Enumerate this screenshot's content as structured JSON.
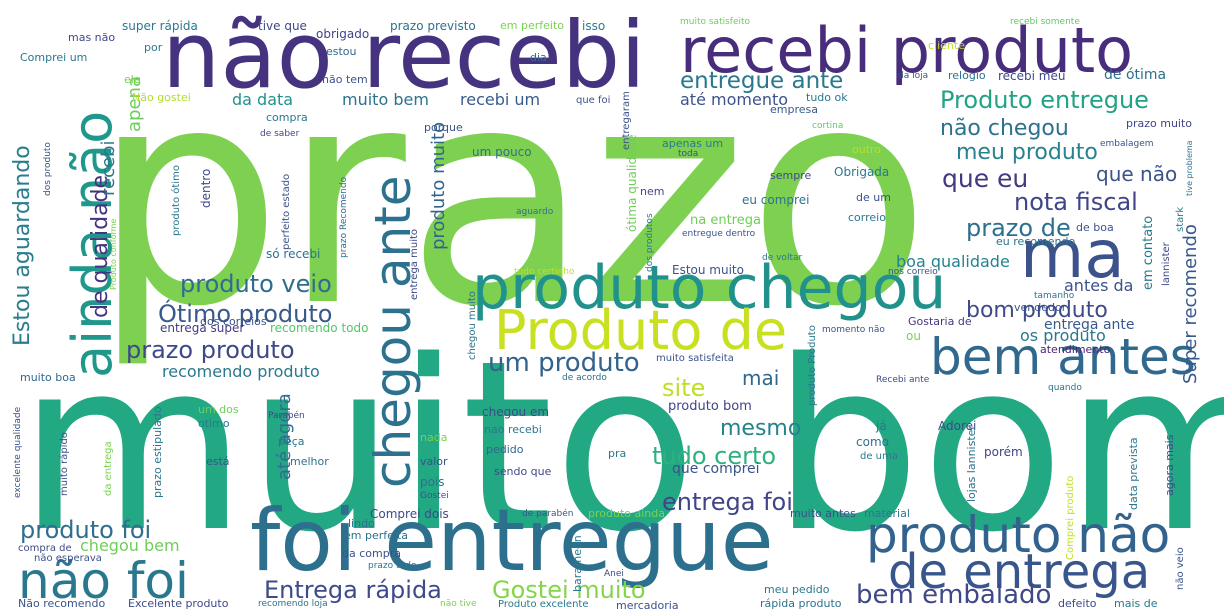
{
  "words": [
    {
      "text": "prazo"
    },
    {
      "text": "muito bom"
    },
    {
      "text": "não recebi"
    },
    {
      "text": "recebi produto"
    },
    {
      "text": "foi entregue"
    },
    {
      "text": "produto chegou"
    },
    {
      "text": "ainda não"
    },
    {
      "text": "chegou ante"
    },
    {
      "text": "Produto de"
    },
    {
      "text": "bem antes"
    },
    {
      "text": "ma"
    },
    {
      "text": "produto não"
    },
    {
      "text": "de entrega"
    },
    {
      "text": "não foi"
    },
    {
      "text": "Entrega rápida"
    },
    {
      "text": "Gostei muito"
    },
    {
      "text": "bem embalado"
    },
    {
      "text": "entregue ante"
    },
    {
      "text": "Produto entregue"
    },
    {
      "text": "não chegou"
    },
    {
      "text": "meu produto"
    },
    {
      "text": "que eu"
    },
    {
      "text": "que não"
    },
    {
      "text": "nota fiscal"
    },
    {
      "text": "prazo de"
    },
    {
      "text": "Estou aguardando"
    },
    {
      "text": "de qualidade"
    },
    {
      "text": "produto veio"
    },
    {
      "text": "Ótimo produto"
    },
    {
      "text": "prazo produto"
    },
    {
      "text": "um produto"
    },
    {
      "text": "site"
    },
    {
      "text": "mai"
    },
    {
      "text": "mesmo"
    },
    {
      "text": "tudo certo"
    },
    {
      "text": "entrega foi"
    },
    {
      "text": "produto foi"
    },
    {
      "text": "chegou bem"
    },
    {
      "text": "bom produto"
    },
    {
      "text": "Super recomendo"
    },
    {
      "text": "recebi"
    },
    {
      "text": "apena"
    },
    {
      "text": "produto muito"
    },
    {
      "text": "até agora"
    },
    {
      "text": "muito bem"
    },
    {
      "text": "recebi um"
    },
    {
      "text": "até momento"
    },
    {
      "text": "da data"
    },
    {
      "text": "recomendo produto"
    },
    {
      "text": "dos correios"
    },
    {
      "text": "entrega super"
    },
    {
      "text": "recomendo todo"
    },
    {
      "text": "boa qualidade"
    },
    {
      "text": "antes da"
    },
    {
      "text": "os produto"
    },
    {
      "text": "entrega ante"
    },
    {
      "text": "em contato"
    },
    {
      "text": "vendedor"
    },
    {
      "text": "Gostaria de"
    },
    {
      "text": "atendimento"
    },
    {
      "text": "super rápida"
    },
    {
      "text": "tive que"
    },
    {
      "text": "obrigado"
    },
    {
      "text": "prazo previsto"
    },
    {
      "text": "em perfeito"
    },
    {
      "text": "isso"
    },
    {
      "text": "muito satisfeito"
    },
    {
      "text": "recebi somente"
    },
    {
      "text": "mas não"
    },
    {
      "text": "Comprei um"
    },
    {
      "text": "estou"
    },
    {
      "text": "por"
    },
    {
      "text": "ele"
    },
    {
      "text": "não tem"
    },
    {
      "text": "dia"
    },
    {
      "text": "Não gostei"
    },
    {
      "text": "que foi"
    },
    {
      "text": "tudo ok"
    },
    {
      "text": "empresa"
    },
    {
      "text": "relógio"
    },
    {
      "text": "recebi meu"
    },
    {
      "text": "de ótima"
    },
    {
      "text": "cliente"
    },
    {
      "text": "da loja"
    },
    {
      "text": "compra"
    },
    {
      "text": "porque"
    },
    {
      "text": "cortina"
    },
    {
      "text": "de saber"
    },
    {
      "text": "prazo muito"
    },
    {
      "text": "embalagem"
    },
    {
      "text": "um pouco"
    },
    {
      "text": "apenas um"
    },
    {
      "text": "toda"
    },
    {
      "text": "outro"
    },
    {
      "text": "Obrigada"
    },
    {
      "text": "sempre"
    },
    {
      "text": "eu comprei"
    },
    {
      "text": "de um"
    },
    {
      "text": "correio"
    },
    {
      "text": "aguardo"
    },
    {
      "text": "entregue dentro"
    },
    {
      "text": "na entrega"
    },
    {
      "text": "de boa"
    },
    {
      "text": "eu recomendo"
    },
    {
      "text": "dentro"
    },
    {
      "text": "produto ótimo"
    },
    {
      "text": "perfeito estado"
    },
    {
      "text": "só recebi"
    },
    {
      "text": "prazo Recomendo"
    },
    {
      "text": "nem"
    },
    {
      "text": "Estou muito"
    },
    {
      "text": "de voltar"
    },
    {
      "text": "tudo certinho"
    },
    {
      "text": "nos correio"
    },
    {
      "text": "tamanho"
    },
    {
      "text": "lannister"
    },
    {
      "text": "stark"
    },
    {
      "text": "momento não"
    },
    {
      "text": "ou"
    },
    {
      "text": "muito satisfeita"
    },
    {
      "text": "de acordo"
    },
    {
      "text": "Recebi ante"
    },
    {
      "text": "quando"
    },
    {
      "text": "muito boa"
    },
    {
      "text": "excelente qualidade"
    },
    {
      "text": "um dos"
    },
    {
      "text": "otimo"
    },
    {
      "text": "Parabén"
    },
    {
      "text": "peça"
    },
    {
      "text": "está"
    },
    {
      "text": "melhor"
    },
    {
      "text": "nada"
    },
    {
      "text": "chegou em"
    },
    {
      "text": "nao recebi"
    },
    {
      "text": "pedido"
    },
    {
      "text": "valor"
    },
    {
      "text": "produto bom"
    },
    {
      "text": "já"
    },
    {
      "text": "como"
    },
    {
      "text": "Adorei"
    },
    {
      "text": "porém"
    },
    {
      "text": "de uma"
    },
    {
      "text": "que comprei"
    },
    {
      "text": "pois"
    },
    {
      "text": "sendo que"
    },
    {
      "text": "pra"
    },
    {
      "text": "Gostei"
    },
    {
      "text": "lojas lannister"
    },
    {
      "text": "data prevista"
    },
    {
      "text": "agora mais"
    },
    {
      "text": "muito rápido"
    },
    {
      "text": "prazo estipulado"
    },
    {
      "text": "da entrega"
    },
    {
      "text": "Comprei dois"
    },
    {
      "text": "lindo"
    },
    {
      "text": "de parabén"
    },
    {
      "text": "produto ainda"
    },
    {
      "text": "muito antes"
    },
    {
      "text": "material"
    },
    {
      "text": "compra de"
    },
    {
      "text": "em perfeita"
    },
    {
      "text": "da compra"
    },
    {
      "text": "baratheon"
    },
    {
      "text": "Anei"
    },
    {
      "text": "não esperava"
    },
    {
      "text": "prazo tudo"
    },
    {
      "text": "meu pedido"
    },
    {
      "text": "Não recomendo"
    },
    {
      "text": "Excelente produto"
    },
    {
      "text": "recomendo loja"
    },
    {
      "text": "não tive"
    },
    {
      "text": "Produto excelente"
    },
    {
      "text": "mercadoria"
    },
    {
      "text": "rápida produto"
    },
    {
      "text": "defeito"
    },
    {
      "text": "mais de"
    },
    {
      "text": "não veio"
    },
    {
      "text": "Comprei produto"
    },
    {
      "text": "dos produtos"
    },
    {
      "text": "ótima qualidade"
    },
    {
      "text": "entregaram"
    },
    {
      "text": "chegou muito"
    },
    {
      "text": "entrega muito"
    },
    {
      "text": "produto Produto"
    },
    {
      "text": "Produto conforme"
    },
    {
      "text": "dos produto"
    },
    {
      "text": "tive problema"
    }
  ]
}
